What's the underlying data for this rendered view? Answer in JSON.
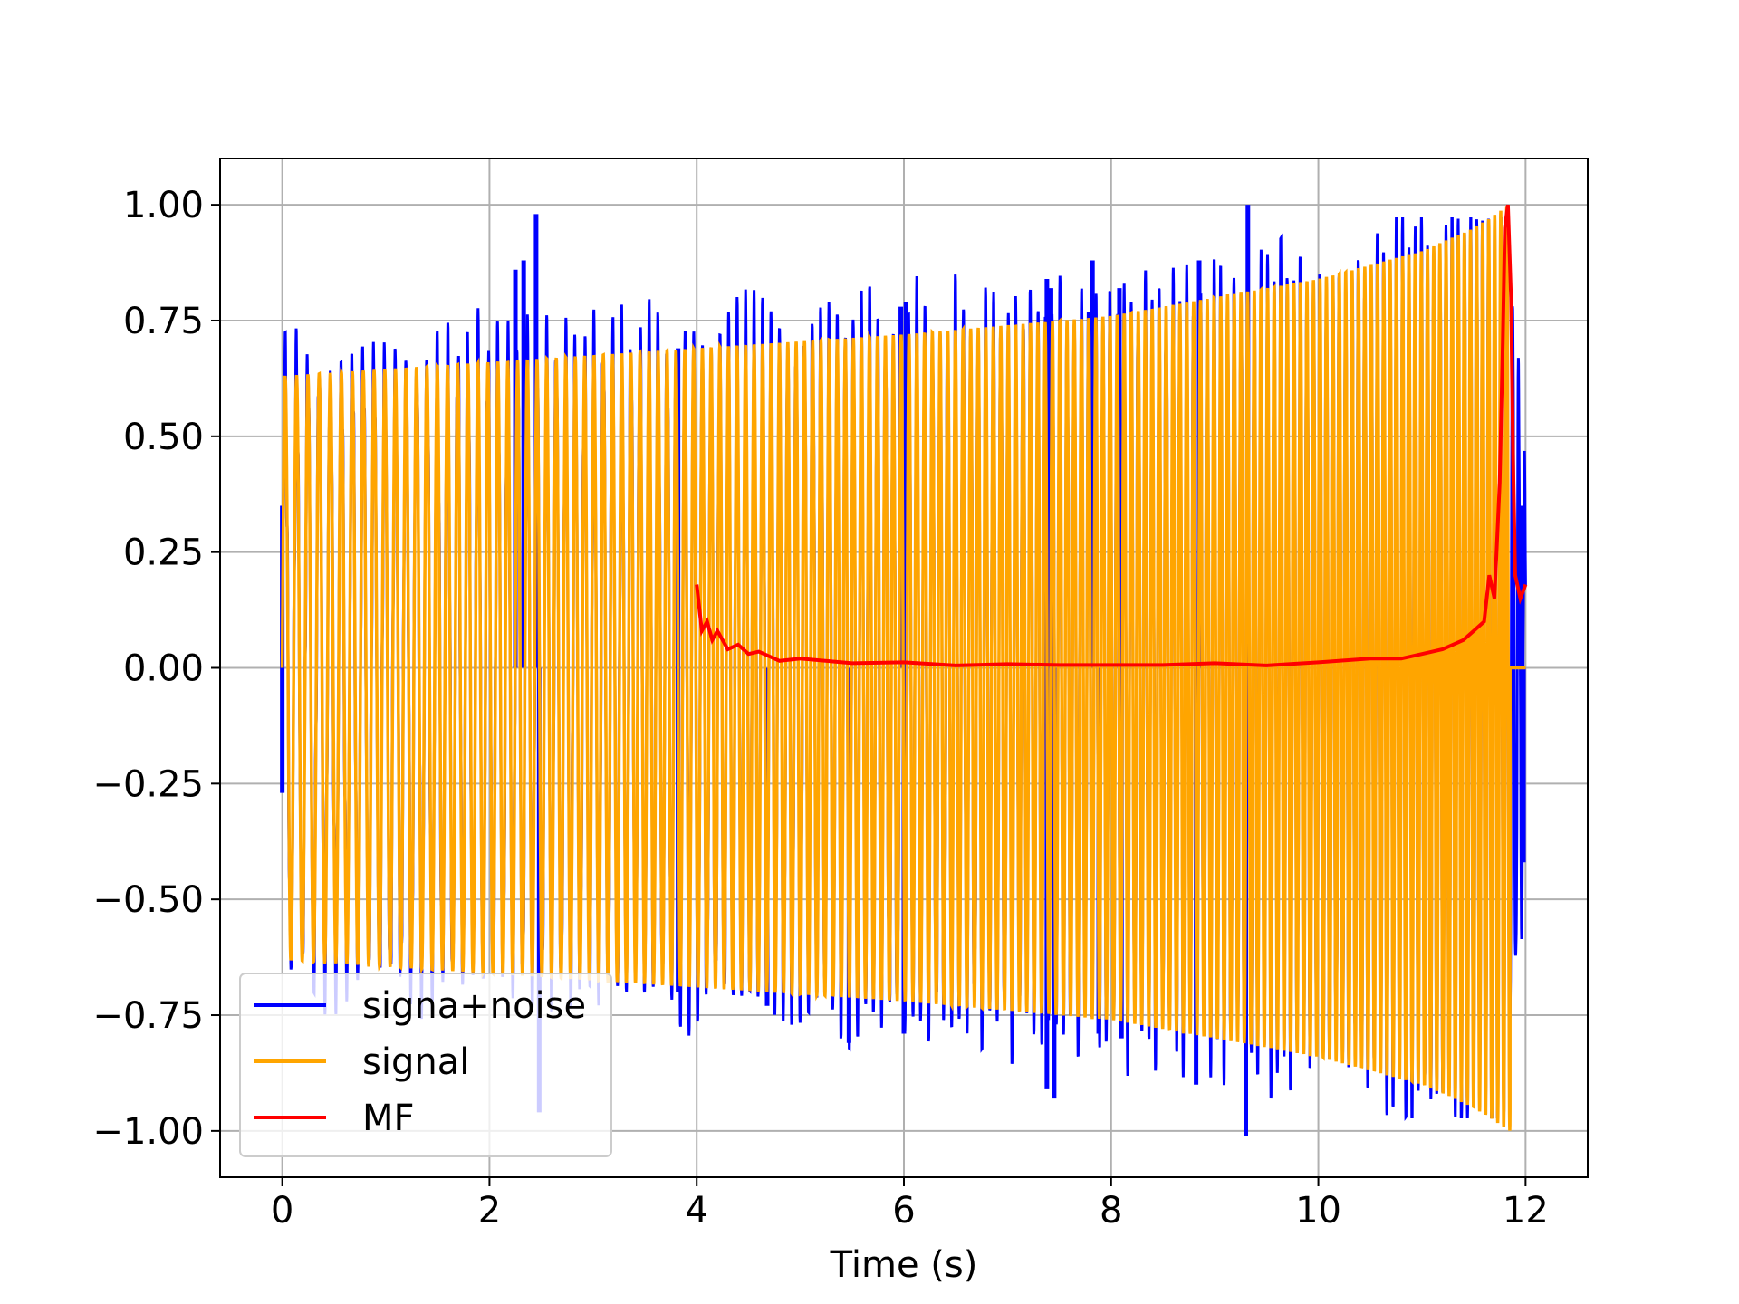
{
  "chart_data": {
    "type": "line",
    "title": "",
    "xlabel": "Time (s)",
    "ylabel": "",
    "xlim": [
      -0.6,
      12.6
    ],
    "ylim": [
      -1.1,
      1.1
    ],
    "grid": true,
    "legend_position": "lower-left",
    "xticks": [
      0,
      2,
      4,
      6,
      8,
      10,
      12
    ],
    "xtick_labels": [
      "0",
      "2",
      "4",
      "6",
      "8",
      "10",
      "12"
    ],
    "yticks": [
      1.0,
      0.75,
      0.5,
      0.25,
      0.0,
      -0.25,
      -0.5,
      -0.75,
      -1.0
    ],
    "ytick_labels": [
      "1.00",
      "0.75",
      "0.50",
      "0.25",
      "0.00",
      "−0.25",
      "−0.50",
      "−0.75",
      "−1.00"
    ],
    "series": [
      {
        "name": "signa+noise",
        "color": "#0000ff",
        "kind": "noisy-chirp",
        "envelope_x": [
          0,
          4,
          8,
          10,
          11.5,
          11.8,
          12
        ],
        "envelope_y": [
          0.63,
          0.69,
          0.76,
          0.84,
          0.95,
          1.0,
          0.42
        ],
        "spikes": [
          {
            "x": 0.0,
            "y": 0.35
          },
          {
            "x": 0.0,
            "y": -0.27
          },
          {
            "x": 2.25,
            "y": 0.86
          },
          {
            "x": 2.33,
            "y": 0.88
          },
          {
            "x": 2.45,
            "y": 0.98
          },
          {
            "x": 2.48,
            "y": -0.96
          },
          {
            "x": 3.82,
            "y": 0.69
          },
          {
            "x": 3.82,
            "y": -0.7
          },
          {
            "x": 4.68,
            "y": -0.73
          },
          {
            "x": 5.47,
            "y": -0.81
          },
          {
            "x": 5.97,
            "y": 0.78
          },
          {
            "x": 6.02,
            "y": 0.79
          },
          {
            "x": 6.0,
            "y": -0.79
          },
          {
            "x": 7.38,
            "y": 0.84
          },
          {
            "x": 7.42,
            "y": 0.82
          },
          {
            "x": 7.38,
            "y": -0.91
          },
          {
            "x": 7.45,
            "y": -0.93
          },
          {
            "x": 7.82,
            "y": 0.88
          },
          {
            "x": 7.88,
            "y": -0.79
          },
          {
            "x": 8.08,
            "y": 0.82
          },
          {
            "x": 8.1,
            "y": -0.8
          },
          {
            "x": 8.85,
            "y": 0.88
          },
          {
            "x": 8.82,
            "y": -0.9
          },
          {
            "x": 9.32,
            "y": 1.0
          },
          {
            "x": 9.3,
            "y": -1.01
          },
          {
            "x": 11.95,
            "y": 0.35
          },
          {
            "x": 11.98,
            "y": -0.42
          }
        ]
      },
      {
        "name": "signal",
        "color": "#ffa500",
        "kind": "chirp",
        "t_start": 0,
        "t_end": 11.85,
        "envelope_x": [
          0,
          2,
          4,
          6,
          8,
          10,
          11,
          11.5,
          11.85
        ],
        "envelope_y": [
          0.63,
          0.66,
          0.69,
          0.72,
          0.76,
          0.84,
          0.9,
          0.95,
          1.0
        ]
      },
      {
        "name": "MF",
        "color": "#ff0000",
        "x": [
          4.0,
          4.05,
          4.1,
          4.15,
          4.2,
          4.3,
          4.4,
          4.5,
          4.6,
          4.8,
          5.0,
          5.5,
          6.0,
          6.5,
          7.0,
          7.5,
          8.0,
          8.5,
          9.0,
          9.5,
          10.0,
          10.5,
          10.8,
          11.0,
          11.2,
          11.4,
          11.5,
          11.6,
          11.65,
          11.7,
          11.75,
          11.78,
          11.8,
          11.83,
          11.86,
          11.88,
          11.9,
          11.92,
          11.95,
          12.0
        ],
        "y": [
          0.18,
          0.08,
          0.1,
          0.06,
          0.08,
          0.04,
          0.05,
          0.03,
          0.035,
          0.015,
          0.02,
          0.01,
          0.012,
          0.005,
          0.008,
          0.006,
          0.006,
          0.006,
          0.01,
          0.005,
          0.012,
          0.02,
          0.02,
          0.03,
          0.04,
          0.06,
          0.08,
          0.1,
          0.2,
          0.15,
          0.4,
          0.7,
          0.95,
          1.0,
          0.8,
          0.45,
          0.2,
          0.18,
          0.15,
          0.18
        ]
      }
    ]
  }
}
